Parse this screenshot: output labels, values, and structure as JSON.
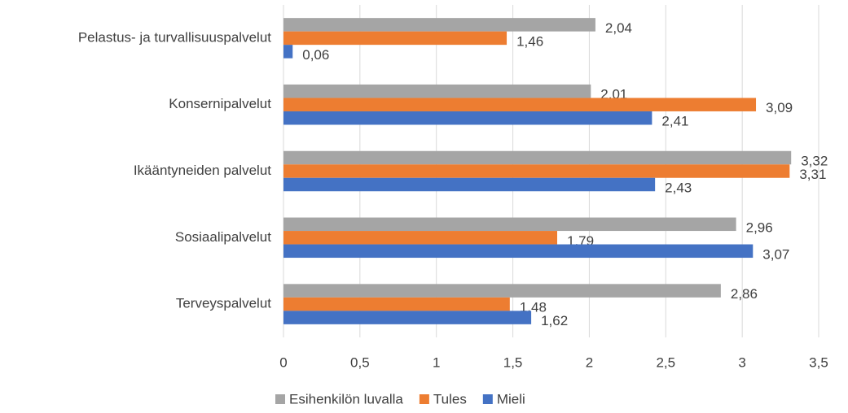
{
  "chart_data": {
    "type": "bar",
    "orientation": "horizontal",
    "categories": [
      "Pelastus- ja turvallisuuspalvelut",
      "Konsernipalvelut",
      "Ikääntyneiden palvelut",
      "Sosiaalipalvelut",
      "Terveyspalvelut"
    ],
    "series": [
      {
        "name": "Esihenkilön luvalla",
        "color": "#a5a5a5",
        "values": [
          2.04,
          2.01,
          3.32,
          2.96,
          2.86
        ],
        "value_labels": [
          "2,04",
          "2,01",
          "3,32",
          "2,96",
          "2,86"
        ]
      },
      {
        "name": "Tules",
        "color": "#ed7d31",
        "values": [
          1.46,
          3.09,
          3.31,
          1.79,
          1.48
        ],
        "value_labels": [
          "1,46",
          "3,09",
          "3,31",
          "1,79",
          "1,48"
        ]
      },
      {
        "name": "Mieli",
        "color": "#4472c4",
        "values": [
          0.06,
          2.41,
          2.43,
          3.07,
          1.62
        ],
        "value_labels": [
          "0,06",
          "2,41",
          "2,43",
          "3,07",
          "1,62"
        ]
      }
    ],
    "xlim": [
      0,
      3.5
    ],
    "xticks": [
      0,
      {
        "value": 0.5,
        "label": "0,5"
      },
      1,
      {
        "value": 1.5,
        "label": "1,5"
      },
      2,
      {
        "value": 2.5,
        "label": "2,5"
      },
      3,
      {
        "value": 3.5,
        "label": "3,5"
      }
    ],
    "grid": true,
    "legend": "bottom"
  }
}
